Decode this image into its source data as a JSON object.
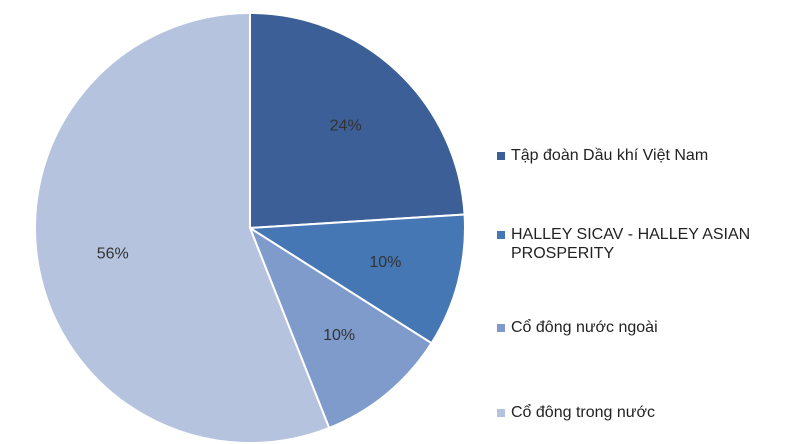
{
  "chart_data": {
    "type": "pie",
    "categories": [
      "Tập đoàn Dầu khí Việt Nam",
      "HALLEY SICAV - HALLEY ASIAN PROSPERITY",
      "Cổ đông nước ngoài",
      "Cổ đông trong nước"
    ],
    "values": [
      24,
      10,
      10,
      56
    ],
    "value_labels": [
      "24%",
      "10%",
      "10%",
      "56%"
    ],
    "colors": [
      "#3b5f96",
      "#4577b4",
      "#7e9bcc",
      "#b5c3df"
    ],
    "legend": "right"
  }
}
